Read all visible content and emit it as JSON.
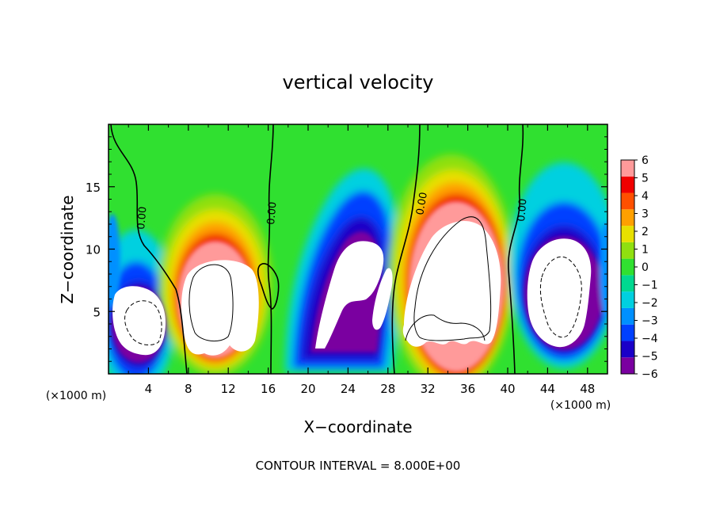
{
  "chart_data": {
    "type": "heatmap",
    "title": "vertical velocity",
    "xlabel": "X−coordinate",
    "ylabel": "Z−coordinate",
    "x_unit_left": "(×1000 m)",
    "x_unit_right": "(×1000 m)",
    "footer": "CONTOUR INTERVAL = 8.000E+00",
    "xlim": [
      0,
      50
    ],
    "ylim": [
      0,
      20
    ],
    "x_ticks": [
      4,
      8,
      12,
      16,
      20,
      24,
      28,
      32,
      36,
      40,
      44,
      48
    ],
    "y_ticks": [
      5,
      10,
      15
    ],
    "colorbar": {
      "levels": [
        -6,
        -5,
        -4,
        -3,
        -2,
        -1,
        0,
        1,
        2,
        3,
        4,
        5,
        6
      ],
      "labels": [
        "6",
        "5",
        "4",
        "3",
        "2",
        "1",
        "0",
        "−1",
        "−2",
        "−3",
        "−4",
        "−5",
        "−6"
      ],
      "colors": [
        "#7a00a0",
        "#1a00c8",
        "#0040ff",
        "#0090ff",
        "#00d0e0",
        "#00d890",
        "#30e030",
        "#90e010",
        "#e8e000",
        "#ffa000",
        "#ff5000",
        "#f00000",
        "#ff9a9a"
      ]
    },
    "zero_contour_labels": [
      "0.00",
      "0.00",
      "0.00",
      "0.00"
    ],
    "updrafts": [
      {
        "x": 10,
        "z": 6.5,
        "peak": "above 6"
      },
      {
        "x": 24,
        "z": 7,
        "peak": "above 6"
      },
      {
        "x": 36,
        "z": 8,
        "peak": "above 6"
      }
    ],
    "downdrafts": [
      {
        "x": 3.5,
        "z": 4.5,
        "peak": "below -6"
      },
      {
        "x": 45,
        "z": 6,
        "peak": "below -6"
      }
    ]
  }
}
